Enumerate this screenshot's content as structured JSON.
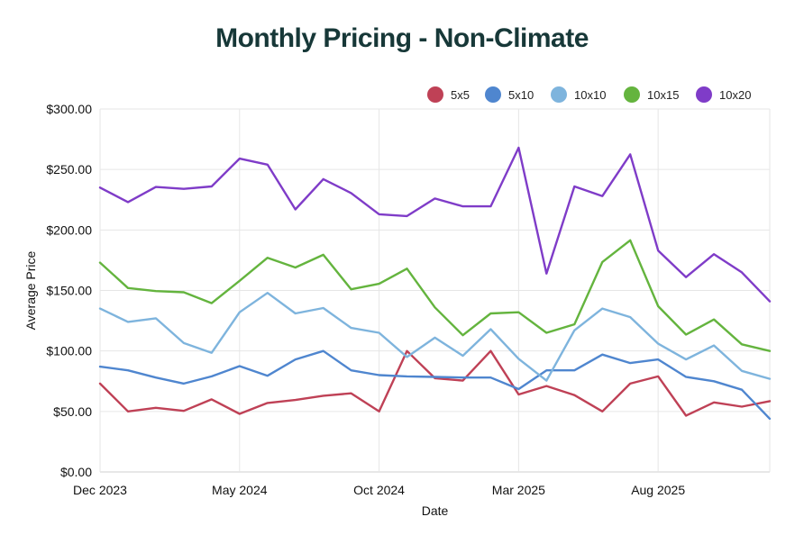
{
  "chart_data": {
    "type": "line",
    "title": "Monthly Pricing - Non-Climate",
    "xlabel": "Date",
    "ylabel": "Average Price",
    "ylim": [
      0,
      300
    ],
    "grid": true,
    "legend_position": "top-right",
    "x_tick_labels": [
      "Dec 2023",
      "May 2024",
      "Oct 2024",
      "Mar 2025",
      "Aug 2025"
    ],
    "y_tick_labels": [
      "$0.00",
      "$50.00",
      "$100.00",
      "$150.00",
      "$200.00",
      "$250.00",
      "$300.00"
    ],
    "x": [
      "2023-12",
      "2024-01",
      "2024-02",
      "2024-03",
      "2024-04",
      "2024-05",
      "2024-06",
      "2024-07",
      "2024-08",
      "2024-09",
      "2024-10",
      "2024-11",
      "2024-12",
      "2025-01",
      "2025-02",
      "2025-03",
      "2025-04",
      "2025-05",
      "2025-06",
      "2025-07",
      "2025-08",
      "2025-09",
      "2025-10",
      "2025-11",
      "2025-12"
    ],
    "series": [
      {
        "name": "5x5",
        "color": "#bf4156",
        "values": [
          73,
          50,
          53,
          50.5,
          60,
          48,
          57,
          59.5,
          63,
          65,
          50,
          100,
          77.5,
          75.5,
          100,
          64,
          71,
          63.5,
          50,
          73,
          79,
          46.5,
          57.5,
          54,
          58.5
        ]
      },
      {
        "name": "5x10",
        "color": "#4f86cf",
        "values": [
          87,
          84,
          78,
          73,
          79,
          87.5,
          79.5,
          93,
          100,
          84,
          80,
          79,
          78.5,
          78,
          78,
          68.5,
          84,
          84,
          97,
          90,
          93,
          78.5,
          75,
          68,
          44
        ]
      },
      {
        "name": "10x10",
        "color": "#7eb4dd",
        "values": [
          135,
          124,
          127,
          106.5,
          98.5,
          132,
          148,
          131,
          135.5,
          119,
          115,
          95,
          111,
          96,
          118,
          93.5,
          75.5,
          117,
          135,
          128,
          106,
          93,
          104.5,
          83.5,
          77
        ]
      },
      {
        "name": "10x15",
        "color": "#64b43e",
        "values": [
          173,
          152,
          149.5,
          148.5,
          139.5,
          158,
          177,
          169,
          179.5,
          151,
          155.5,
          168,
          136,
          113,
          131,
          132,
          115,
          122,
          173.5,
          191.5,
          137,
          113.5,
          126,
          105.5,
          100
        ]
      },
      {
        "name": "10x20",
        "color": "#7f3cc8",
        "values": [
          235,
          223,
          235.5,
          234,
          236,
          259,
          254,
          217,
          242,
          230.5,
          213,
          211.5,
          226,
          219.5,
          219.5,
          268,
          164,
          236,
          228,
          262.5,
          183,
          161,
          180,
          165,
          141
        ]
      }
    ]
  }
}
